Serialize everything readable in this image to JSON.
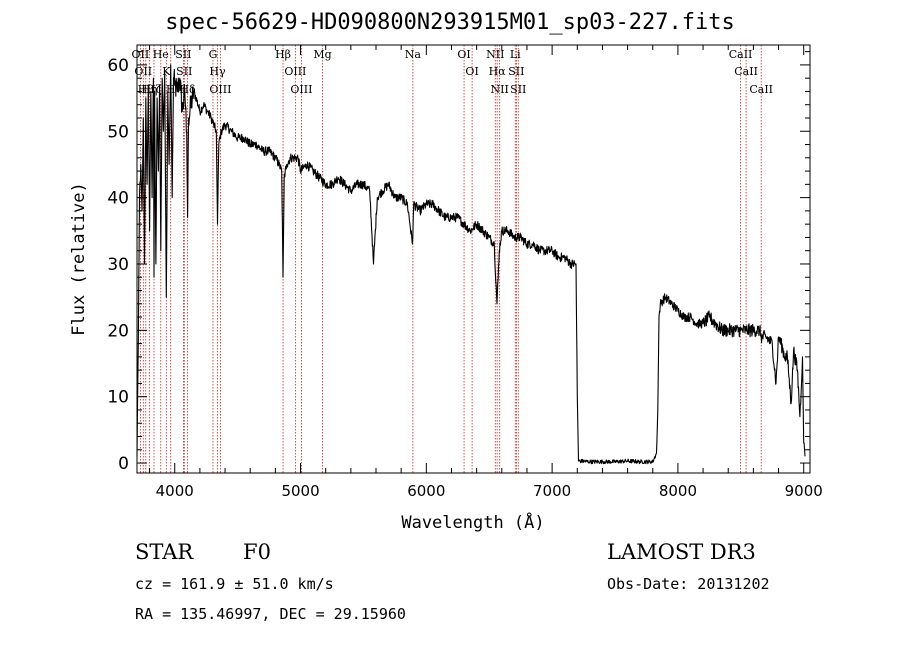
{
  "chart_data": {
    "type": "line",
    "title": "spec-56629-HD090800N293915M01_sp03-227.fits",
    "xlabel": "Wavelength (Å)",
    "ylabel": "Flux (relative)",
    "xlim": [
      3700,
      9050
    ],
    "ylim": [
      -1.5,
      63
    ],
    "xticks": [
      4000,
      5000,
      6000,
      7000,
      8000,
      9000
    ],
    "xtick_labels": [
      "4000",
      "5000",
      "6000",
      "7000",
      "8000",
      "9000"
    ],
    "yticks": [
      0,
      10,
      20,
      30,
      40,
      50,
      60
    ],
    "ytick_labels": [
      "0",
      "10",
      "20",
      "30",
      "40",
      "50",
      "60"
    ],
    "grid": false,
    "series": [
      {
        "name": "spectrum",
        "x": [
          3700,
          3710,
          3720,
          3730,
          3740,
          3750,
          3760,
          3770,
          3780,
          3790,
          3800,
          3810,
          3820,
          3830,
          3835,
          3840,
          3850,
          3860,
          3870,
          3880,
          3889,
          3900,
          3910,
          3920,
          3933,
          3945,
          3955,
          3968,
          3980,
          3990,
          4000,
          4020,
          4040,
          4060,
          4080,
          4095,
          4102,
          4110,
          4130,
          4150,
          4170,
          4200,
          4230,
          4260,
          4290,
          4310,
          4330,
          4340,
          4350,
          4370,
          4400,
          4450,
          4500,
          4550,
          4600,
          4650,
          4700,
          4750,
          4800,
          4830,
          4850,
          4861,
          4870,
          4890,
          4920,
          4950,
          4980,
          5000,
          5050,
          5100,
          5150,
          5200,
          5250,
          5300,
          5350,
          5400,
          5450,
          5500,
          5550,
          5580,
          5610,
          5650,
          5700,
          5750,
          5800,
          5850,
          5890,
          5900,
          5950,
          6000,
          6050,
          6100,
          6150,
          6200,
          6250,
          6300,
          6350,
          6400,
          6450,
          6500,
          6540,
          6562,
          6580,
          6600,
          6650,
          6700,
          6750,
          6800,
          6850,
          6900,
          6950,
          7000,
          7050,
          7100,
          7150,
          7190,
          7200,
          7210,
          7230,
          7300,
          7400,
          7500,
          7600,
          7700,
          7800,
          7830,
          7840,
          7850,
          7860,
          7900,
          7950,
          8000,
          8050,
          8100,
          8150,
          8200,
          8250,
          8300,
          8350,
          8400,
          8450,
          8500,
          8542,
          8550,
          8600,
          8650,
          8662,
          8700,
          8750,
          8780,
          8800,
          8820,
          8850,
          8870,
          8900,
          8920,
          8950,
          8970,
          8990,
          9000,
          9010
        ],
        "values": [
          1,
          18,
          40,
          45,
          38,
          52,
          30,
          55,
          42,
          57,
          35,
          56,
          40,
          58,
          28,
          56,
          30,
          55,
          44,
          57,
          32,
          58,
          50,
          59,
          25,
          56,
          45,
          60,
          40,
          58,
          57,
          56,
          58,
          53,
          56,
          50,
          37,
          52,
          54,
          56,
          55,
          53,
          54,
          53,
          52,
          51,
          50,
          36,
          48,
          50,
          51,
          50,
          49,
          49,
          48,
          48,
          47,
          47,
          46,
          45,
          44,
          28,
          43,
          45,
          46,
          46,
          46,
          44,
          45,
          44,
          43,
          42,
          42,
          43,
          42,
          41,
          42,
          42,
          41,
          30,
          40,
          41,
          42,
          40,
          40,
          39,
          33,
          39,
          38,
          39,
          39,
          38,
          37,
          37,
          37,
          36,
          35,
          36,
          35,
          34,
          33,
          24,
          32,
          35,
          35,
          34,
          34,
          33,
          33,
          32,
          32,
          32,
          31,
          31,
          30,
          30,
          10,
          0.3,
          0.3,
          0.2,
          0.2,
          0.2,
          0.3,
          0.2,
          0.2,
          1.5,
          8,
          22,
          24,
          25,
          24,
          23,
          22,
          22,
          21,
          21,
          22,
          21,
          20,
          20,
          20,
          20,
          20,
          20,
          20,
          20,
          19,
          19,
          18,
          12,
          19,
          18,
          16,
          16,
          9,
          17,
          14,
          7,
          16,
          3,
          1
        ]
      }
    ],
    "lines": [
      {
        "wl": 3727,
        "label": "OII"
      },
      {
        "wl": 3750,
        "label": "OII"
      },
      {
        "wl": 3770,
        "label": "Hθ"
      },
      {
        "wl": 3798,
        "label": "Hη"
      },
      {
        "wl": 3835,
        "label": "Hζ"
      },
      {
        "wl": 3889,
        "label": "He"
      },
      {
        "wl": 3933,
        "label": "K"
      },
      {
        "wl": 3968,
        "label": "H"
      },
      {
        "wl": 4069,
        "label": "SII"
      },
      {
        "wl": 4076,
        "label": "SII"
      },
      {
        "wl": 4102,
        "label": "Hδ"
      },
      {
        "wl": 4304,
        "label": "G"
      },
      {
        "wl": 4340,
        "label": "Hγ"
      },
      {
        "wl": 4363,
        "label": "OIII"
      },
      {
        "wl": 4861,
        "label": "Hβ"
      },
      {
        "wl": 4959,
        "label": "OIII"
      },
      {
        "wl": 5007,
        "label": "OIII"
      },
      {
        "wl": 5175,
        "label": "Mg"
      },
      {
        "wl": 5893,
        "label": "Na"
      },
      {
        "wl": 6300,
        "label": "OI"
      },
      {
        "wl": 6364,
        "label": "OI"
      },
      {
        "wl": 6548,
        "label": "NII"
      },
      {
        "wl": 6563,
        "label": "Hα"
      },
      {
        "wl": 6583,
        "label": "NII"
      },
      {
        "wl": 6707,
        "label": "Li"
      },
      {
        "wl": 6716,
        "label": "SII"
      },
      {
        "wl": 6731,
        "label": "SII"
      },
      {
        "wl": 8498,
        "label": "CaII"
      },
      {
        "wl": 8542,
        "label": "CaII"
      },
      {
        "wl": 8662,
        "label": "CaII"
      }
    ],
    "colors": {
      "spectrum": "#000000",
      "line_markers": "#c8281e",
      "axes": "#000000"
    }
  },
  "info": {
    "class": "STAR",
    "subclass": "F0",
    "survey": "LAMOST DR3",
    "cz": "cz = 161.9 ± 51.0 km/s",
    "obs_date": "Obs-Date: 20131202",
    "radec": "RA = 135.46997, DEC =  29.15960"
  }
}
